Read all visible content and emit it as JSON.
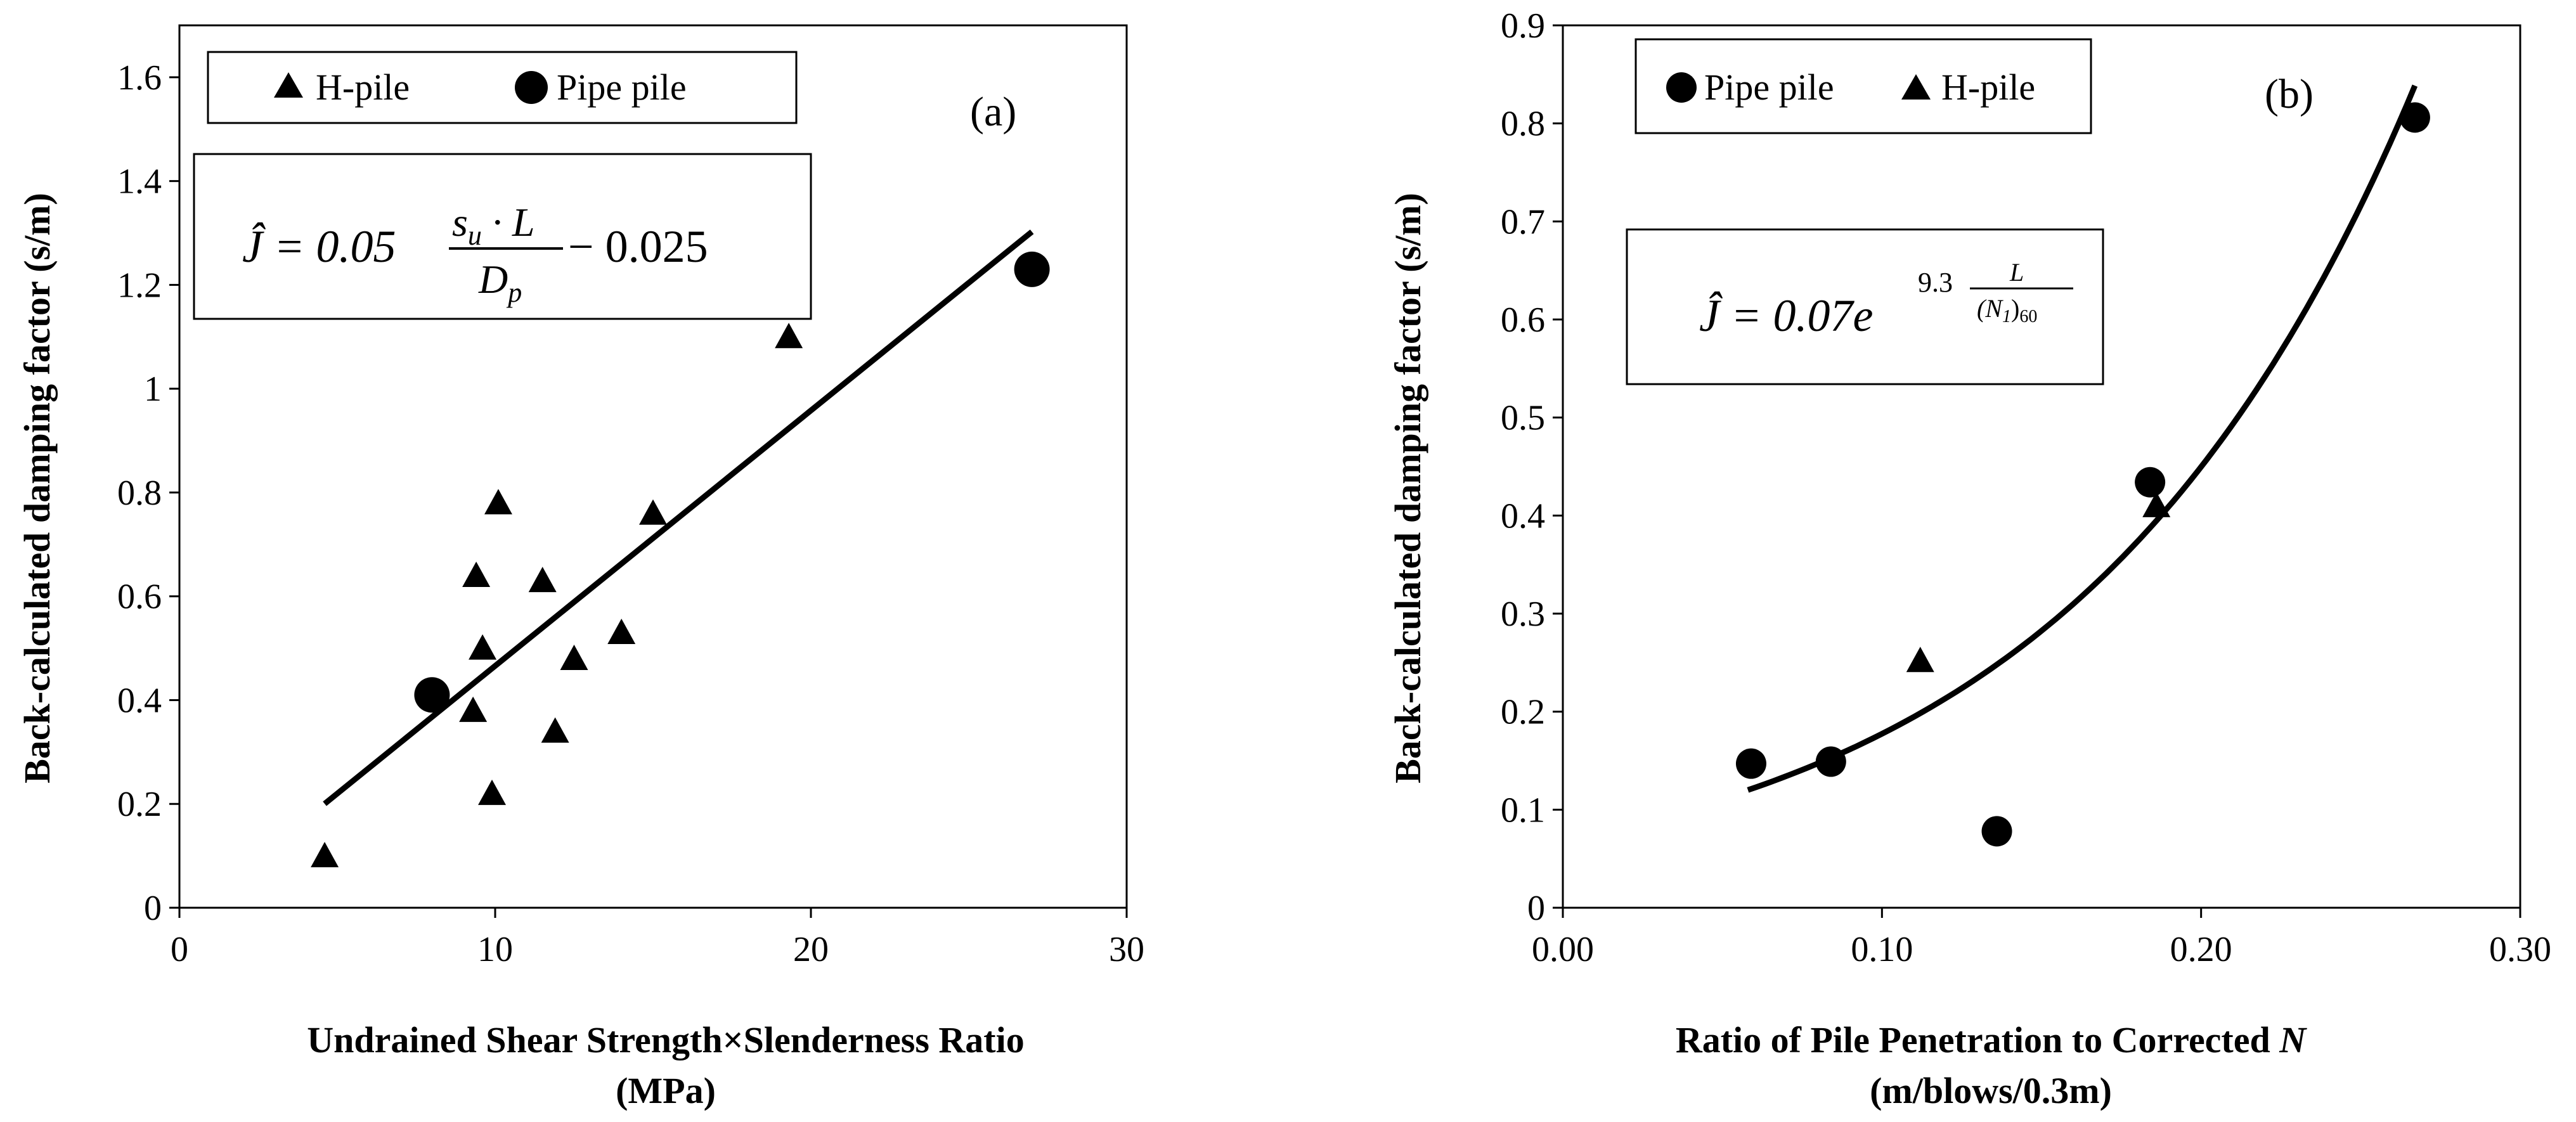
{
  "chart_data": [
    {
      "type": "scatter",
      "panel_label": "(a)",
      "xlabel_line1": "Undrained Shear Strength×Slenderness Ratio",
      "xlabel_line2": "(MPa)",
      "ylabel": "Back-calculated damping factor (s/m)",
      "xlim": [
        0,
        30
      ],
      "ylim": [
        0,
        1.7
      ],
      "x_ticks": [
        "0",
        "10",
        "20",
        "30"
      ],
      "y_ticks": [
        "0",
        "0.2",
        "0.4",
        "0.6",
        "0.8",
        "1",
        "1.2",
        "1.4",
        "1.6"
      ],
      "legend": {
        "placement": "top-left",
        "entries": [
          "H-pile",
          "Pipe pile"
        ]
      },
      "series": [
        {
          "name": "H-pile",
          "marker": "triangle",
          "points": [
            [
              4.6,
              0.1
            ],
            [
              9.3,
              0.38
            ],
            [
              9.4,
              0.64
            ],
            [
              9.6,
              0.5
            ],
            [
              9.9,
              0.22
            ],
            [
              10.1,
              0.78
            ],
            [
              11.5,
              0.63
            ],
            [
              11.9,
              0.34
            ],
            [
              12.5,
              0.48
            ],
            [
              14.0,
              0.53
            ],
            [
              15.0,
              0.76
            ],
            [
              19.3,
              1.1
            ]
          ]
        },
        {
          "name": "Pipe pile",
          "marker": "circle",
          "points": [
            [
              8.0,
              0.41
            ],
            [
              27.0,
              1.23
            ]
          ]
        }
      ],
      "trendline": {
        "type": "linear",
        "x_range": [
          4.6,
          27.0
        ],
        "slope": 0.0492,
        "intercept": -0.026
      },
      "equation": {
        "lhs": "Ĵ = 0.05",
        "numerator": "s",
        "numerator_sub": "u",
        "numerator_rest": " · L",
        "denominator": "D",
        "denominator_sub": "p",
        "tail": "− 0.025"
      }
    },
    {
      "type": "scatter",
      "panel_label": "(b)",
      "xlabel_line1": "Ratio of Pile Penetration to Corrected ",
      "xlabel_italic": "N",
      "xlabel_line2": "(m/blows/0.3m)",
      "ylabel": "Back-calculated damping factor (s/m)",
      "xlim": [
        0,
        0.3
      ],
      "ylim": [
        0,
        0.9
      ],
      "x_ticks": [
        "0.00",
        "0.10",
        "0.20",
        "0.30"
      ],
      "y_ticks": [
        "0",
        "0.1",
        "0.2",
        "0.3",
        "0.4",
        "0.5",
        "0.6",
        "0.7",
        "0.8",
        "0.9"
      ],
      "legend": {
        "placement": "top-left",
        "entries": [
          "Pipe pile",
          "H-pile"
        ]
      },
      "series": [
        {
          "name": "Pipe pile",
          "marker": "circle",
          "points": [
            [
              0.059,
              0.147
            ],
            [
              0.084,
              0.149
            ],
            [
              0.136,
              0.078
            ],
            [
              0.184,
              0.434
            ],
            [
              0.267,
              0.806
            ]
          ]
        },
        {
          "name": "H-pile",
          "marker": "triangle",
          "points": [
            [
              0.112,
              0.252
            ],
            [
              0.186,
              0.41
            ]
          ]
        }
      ],
      "trendline": {
        "type": "exponential",
        "x_range": [
          0.058,
          0.267
        ],
        "a": 0.07,
        "b": 9.3
      },
      "equation": {
        "lhs": "Ĵ = 0.07e",
        "exp_coef": "9.3",
        "exp_num": "L",
        "exp_den": "(N",
        "exp_den_sub1": "1",
        "exp_den_close": ")",
        "exp_den_sub2": "60"
      }
    }
  ]
}
